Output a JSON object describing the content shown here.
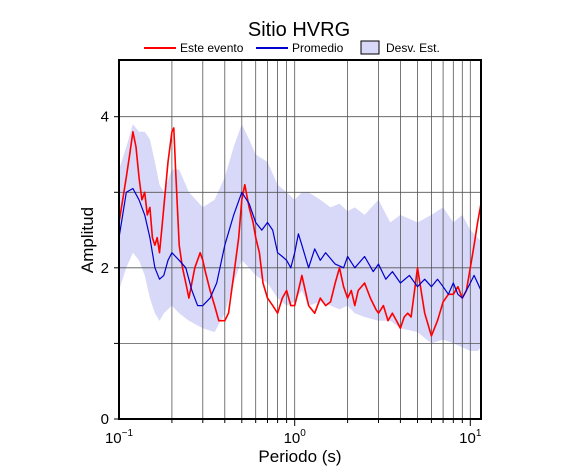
{
  "chart_data": {
    "type": "line",
    "title": "Sitio HVRG",
    "xlabel": "Periodo (s)",
    "ylabel": "Amplitud",
    "xscale": "log",
    "xlim": [
      0.1,
      11.5
    ],
    "ylim": [
      0,
      4.75
    ],
    "x_major_ticks": [
      0.1,
      1,
      10
    ],
    "x_tick_labels": [
      {
        "base": "10",
        "exp": "−1"
      },
      {
        "base": "10",
        "exp": "0"
      },
      {
        "base": "10",
        "exp": "1"
      }
    ],
    "y_ticks": [
      0,
      2,
      4
    ],
    "y_tick_labels": [
      "0",
      "2",
      "4"
    ],
    "y_gridlines": [
      1,
      2,
      3,
      4
    ],
    "grid": true,
    "legend_placement": "top",
    "legend": [
      {
        "label": "Este evento",
        "kind": "line",
        "color": "#ff0000"
      },
      {
        "label": "Promedio",
        "kind": "line",
        "color": "#0000cc"
      },
      {
        "label": "Desv. Est.",
        "kind": "box",
        "color": "#d8d8f8"
      }
    ],
    "colors": {
      "este_evento": "#ff0000",
      "promedio": "#0000cc",
      "desv_est": "#d8d8f8"
    },
    "series": [
      {
        "name": "Este evento",
        "color": "#ff0000",
        "x": [
          0.1,
          0.105,
          0.11,
          0.115,
          0.12,
          0.125,
          0.13,
          0.135,
          0.14,
          0.145,
          0.15,
          0.155,
          0.16,
          0.165,
          0.17,
          0.175,
          0.18,
          0.19,
          0.2,
          0.205,
          0.21,
          0.215,
          0.22,
          0.23,
          0.24,
          0.25,
          0.27,
          0.29,
          0.3,
          0.31,
          0.33,
          0.35,
          0.37,
          0.4,
          0.42,
          0.45,
          0.48,
          0.5,
          0.52,
          0.55,
          0.58,
          0.6,
          0.63,
          0.66,
          0.7,
          0.75,
          0.8,
          0.85,
          0.9,
          0.95,
          1.0,
          1.05,
          1.1,
          1.2,
          1.3,
          1.4,
          1.5,
          1.6,
          1.7,
          1.8,
          1.9,
          2.0,
          2.1,
          2.2,
          2.3,
          2.5,
          2.7,
          2.9,
          3.0,
          3.2,
          3.4,
          3.6,
          3.8,
          4.0,
          4.2,
          4.4,
          4.6,
          5.0,
          5.5,
          6.0,
          6.5,
          7.0,
          7.5,
          8.0,
          8.5,
          9.0,
          9.5,
          10.0,
          10.5,
          11.0,
          11.5
        ],
        "y": [
          2.6,
          2.9,
          3.2,
          3.5,
          3.8,
          3.6,
          3.2,
          2.9,
          3.0,
          2.7,
          2.8,
          2.4,
          2.3,
          2.4,
          2.2,
          2.5,
          2.8,
          3.4,
          3.8,
          3.85,
          3.3,
          2.8,
          2.3,
          2.0,
          1.8,
          1.6,
          2.0,
          2.2,
          2.1,
          1.95,
          1.7,
          1.5,
          1.3,
          1.3,
          1.4,
          1.9,
          2.4,
          2.9,
          3.1,
          2.8,
          2.6,
          2.4,
          2.2,
          1.8,
          1.6,
          1.5,
          1.4,
          1.6,
          1.7,
          1.5,
          1.5,
          1.7,
          1.9,
          1.5,
          1.4,
          1.6,
          1.5,
          1.55,
          1.8,
          2.0,
          1.75,
          1.6,
          1.7,
          1.5,
          1.7,
          1.8,
          1.6,
          1.45,
          1.4,
          1.5,
          1.3,
          1.4,
          1.3,
          1.2,
          1.35,
          1.4,
          1.35,
          2.0,
          1.4,
          1.1,
          1.3,
          1.55,
          1.65,
          1.65,
          1.75,
          1.6,
          1.7,
          2.0,
          2.3,
          2.6,
          2.85
        ]
      },
      {
        "name": "Promedio",
        "color": "#0000cc",
        "x": [
          0.1,
          0.105,
          0.11,
          0.12,
          0.13,
          0.14,
          0.15,
          0.16,
          0.17,
          0.18,
          0.19,
          0.2,
          0.22,
          0.24,
          0.26,
          0.28,
          0.3,
          0.33,
          0.36,
          0.4,
          0.45,
          0.5,
          0.55,
          0.6,
          0.65,
          0.7,
          0.75,
          0.8,
          0.85,
          0.9,
          0.95,
          1.0,
          1.05,
          1.1,
          1.2,
          1.3,
          1.4,
          1.5,
          1.7,
          1.9,
          2.0,
          2.2,
          2.5,
          2.8,
          3.0,
          3.3,
          3.6,
          4.0,
          4.5,
          5.0,
          5.5,
          6.0,
          6.5,
          7.0,
          7.5,
          8.0,
          8.5,
          9.0,
          9.5,
          10.0,
          10.5,
          11.0,
          11.5
        ],
        "y": [
          2.4,
          2.7,
          3.0,
          3.05,
          2.9,
          2.7,
          2.4,
          2.0,
          1.85,
          1.9,
          2.1,
          2.2,
          2.1,
          2.0,
          1.7,
          1.5,
          1.5,
          1.6,
          1.8,
          2.3,
          2.7,
          3.0,
          2.85,
          2.6,
          2.5,
          2.6,
          2.5,
          2.2,
          2.15,
          2.1,
          2.0,
          2.2,
          2.45,
          2.3,
          2.0,
          2.25,
          2.1,
          2.2,
          2.05,
          2.0,
          2.15,
          2.0,
          2.15,
          1.95,
          2.05,
          1.85,
          1.95,
          1.8,
          1.9,
          1.75,
          1.85,
          1.75,
          1.85,
          1.75,
          1.65,
          1.8,
          1.65,
          1.6,
          1.7,
          1.8,
          1.9,
          1.8,
          1.7
        ]
      }
    ],
    "band": {
      "name": "Desv. Est.",
      "color": "#d8d8f8",
      "x": [
        0.1,
        0.11,
        0.12,
        0.13,
        0.14,
        0.15,
        0.16,
        0.17,
        0.18,
        0.2,
        0.22,
        0.25,
        0.3,
        0.35,
        0.4,
        0.45,
        0.5,
        0.55,
        0.6,
        0.7,
        0.8,
        0.9,
        1.0,
        1.1,
        1.2,
        1.4,
        1.6,
        1.8,
        2.0,
        2.2,
        2.5,
        3.0,
        3.5,
        4.0,
        5.0,
        6.0,
        7.0,
        8.0,
        9.0,
        10.0,
        11.0,
        11.5
      ],
      "lower": [
        1.7,
        2.0,
        2.2,
        2.1,
        1.9,
        1.6,
        1.4,
        1.3,
        1.4,
        1.5,
        1.4,
        1.3,
        1.2,
        1.15,
        1.4,
        1.8,
        2.1,
        2.0,
        1.9,
        1.8,
        1.6,
        1.5,
        1.55,
        1.7,
        1.5,
        1.55,
        1.5,
        1.45,
        1.5,
        1.4,
        1.35,
        1.3,
        1.3,
        1.2,
        1.15,
        1.0,
        1.05,
        1.0,
        0.95,
        0.9,
        0.9,
        0.95
      ],
      "upper": [
        3.3,
        3.6,
        3.9,
        3.8,
        3.8,
        3.7,
        3.4,
        3.1,
        3.0,
        3.3,
        3.3,
        3.0,
        2.8,
        2.9,
        3.2,
        3.6,
        3.9,
        3.7,
        3.5,
        3.4,
        3.1,
        3.0,
        2.9,
        3.0,
        3.0,
        2.9,
        2.8,
        2.85,
        2.75,
        2.8,
        2.7,
        2.9,
        2.6,
        2.7,
        2.6,
        2.7,
        2.8,
        2.6,
        2.7,
        2.5,
        2.4,
        2.35
      ]
    }
  }
}
